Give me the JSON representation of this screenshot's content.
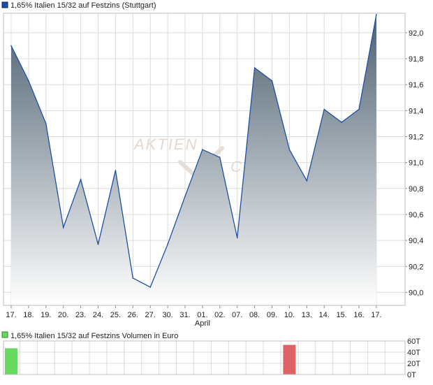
{
  "colors": {
    "price_line": "#1f4fa3",
    "fill_top": "#4d6070",
    "fill_bottom": "#ffffff",
    "grid": "#dcdcdc",
    "frame": "#bdbdbd",
    "vol_up": "#66d95e",
    "vol_down": "#dc6464",
    "watermark": "#e3d8d0"
  },
  "watermark": {
    "line1": "AKTIEN",
    "line2": "CHECK"
  },
  "chart_data": [
    {
      "type": "area",
      "legend": "1,65% Italien 15/32 auf Festzins (Stuttgart)",
      "legend_placement": "top-left",
      "categories": [
        "17.",
        "18.",
        "19.",
        "20.",
        "23.",
        "24.",
        "25.",
        "26.",
        "27.",
        "30.",
        "31.",
        "01.",
        "02.",
        "07.",
        "08.",
        "09.",
        "10.",
        "13.",
        "14.",
        "15.",
        "16.",
        "17."
      ],
      "month_label": {
        "text": "April",
        "category_index": 11
      },
      "series": [
        {
          "values": [
            91.9,
            91.63,
            91.3,
            90.5,
            90.87,
            90.37,
            90.94,
            90.11,
            90.04,
            90.37,
            90.74,
            91.1,
            91.04,
            90.42,
            91.73,
            91.63,
            91.1,
            90.86,
            91.41,
            91.31,
            91.41,
            92.14
          ]
        }
      ],
      "ylim": [
        89.9,
        92.15
      ],
      "yticks": [
        90.0,
        90.2,
        90.4,
        90.6,
        90.8,
        91.0,
        91.2,
        91.4,
        91.6,
        91.8,
        92.0
      ],
      "ytick_labels": [
        "90,0",
        "90,2",
        "90,4",
        "90,6",
        "90,8",
        "91,0",
        "91,2",
        "91,4",
        "91,6",
        "91,8",
        "92,0"
      ],
      "y_axis_side": "right",
      "grid": true
    },
    {
      "type": "bar",
      "legend": "1,65% Italien 15/32 auf Festzins Volumen in Euro",
      "legend_placement": "top-left",
      "categories": [
        "17.",
        "18.",
        "19.",
        "20.",
        "23.",
        "24.",
        "25.",
        "26.",
        "27.",
        "30.",
        "31.",
        "01.",
        "02.",
        "07.",
        "08.",
        "09.",
        "10.",
        "13.",
        "14.",
        "15.",
        "16.",
        "17."
      ],
      "series": [
        {
          "values": [
            47,
            0,
            0,
            0,
            0,
            0,
            0,
            0,
            0,
            0,
            0,
            0,
            0,
            0,
            0,
            0,
            53,
            0,
            0,
            0,
            0,
            0
          ],
          "direction": [
            "up",
            "",
            "",
            "",
            "",
            "",
            "",
            "",
            "",
            "",
            "",
            "",
            "",
            "",
            "",
            "",
            "down",
            "",
            "",
            "",
            "",
            ""
          ]
        }
      ],
      "ylim": [
        0,
        60
      ],
      "yticks": [
        0,
        20,
        40,
        60
      ],
      "ytick_labels": [
        "0T",
        "20T",
        "40T",
        "60T"
      ],
      "y_axis_side": "right",
      "grid": true
    }
  ]
}
